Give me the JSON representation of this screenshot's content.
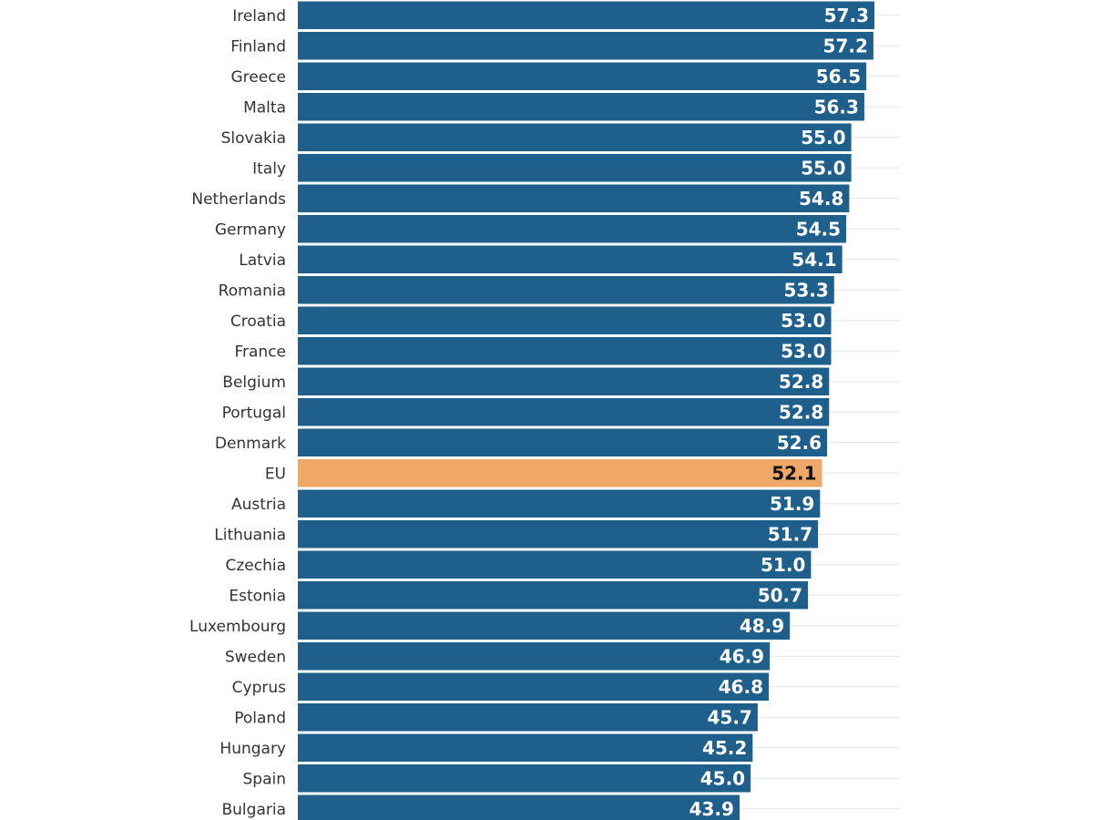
{
  "chart_data": {
    "type": "bar",
    "orientation": "horizontal",
    "title": "",
    "xlabel": "",
    "ylabel": "",
    "xlim": [
      0,
      57.3
    ],
    "grid": true,
    "colors": {
      "bar": "#1f5f8b",
      "highlight": "#f0a868",
      "grid": "#e6e6e6"
    },
    "highlight_category": "EU",
    "categories": [
      "Ireland",
      "Finland",
      "Greece",
      "Malta",
      "Slovakia",
      "Italy",
      "Netherlands",
      "Germany",
      "Latvia",
      "Romania",
      "Croatia",
      "France",
      "Belgium",
      "Portugal",
      "Denmark",
      "EU",
      "Austria",
      "Lithuania",
      "Czechia",
      "Estonia",
      "Luxembourg",
      "Sweden",
      "Cyprus",
      "Poland",
      "Hungary",
      "Spain",
      "Bulgaria"
    ],
    "values": [
      57.3,
      57.2,
      56.5,
      56.3,
      55.0,
      55.0,
      54.8,
      54.5,
      54.1,
      53.3,
      53.0,
      53.0,
      52.8,
      52.8,
      52.6,
      52.1,
      51.9,
      51.7,
      51.0,
      50.7,
      48.9,
      46.9,
      46.8,
      45.7,
      45.2,
      45.0,
      43.9
    ],
    "value_labels": [
      "57.3",
      "57.2",
      "56.5",
      "56.3",
      "55.0",
      "55.0",
      "54.8",
      "54.5",
      "54.1",
      "53.3",
      "53.0",
      "53.0",
      "52.8",
      "52.8",
      "52.6",
      "52.1",
      "51.9",
      "51.7",
      "51.0",
      "50.7",
      "48.9",
      "46.9",
      "46.8",
      "45.7",
      "45.2",
      "45.0",
      "43.9"
    ]
  }
}
